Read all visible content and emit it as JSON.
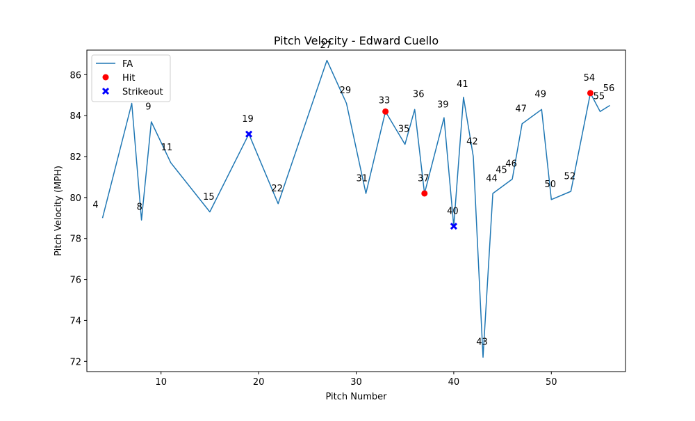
{
  "chart_data": {
    "type": "line",
    "title": "Pitch Velocity - Edward Cuello",
    "xlabel": "Pitch Number",
    "ylabel": "Pitch Velocity (MPH)",
    "xlim": [
      2.4,
      57.6
    ],
    "ylim": [
      71.5,
      87.2
    ],
    "xticks": [
      10,
      20,
      30,
      40,
      50
    ],
    "yticks": [
      72,
      74,
      76,
      78,
      80,
      82,
      84,
      86
    ],
    "grid": false,
    "legend_position": "top-left",
    "series": [
      {
        "name": "FA",
        "type": "line",
        "color": "#1f77b4",
        "x": [
          4,
          7,
          8,
          9,
          11,
          15,
          19,
          22,
          27,
          29,
          31,
          33,
          35,
          36,
          37,
          39,
          40,
          41,
          42,
          43,
          44,
          46,
          47,
          49,
          50,
          52,
          54,
          55,
          56
        ],
        "y": [
          79.0,
          84.6,
          78.9,
          83.7,
          81.7,
          79.3,
          83.1,
          79.7,
          86.7,
          84.6,
          80.2,
          84.2,
          82.6,
          84.3,
          80.2,
          83.9,
          78.6,
          84.9,
          82.0,
          72.2,
          80.2,
          80.9,
          83.6,
          84.3,
          79.9,
          80.3,
          85.1,
          84.2,
          84.5
        ]
      },
      {
        "name": "Hit",
        "type": "scatter",
        "marker": "circle",
        "color": "#ff0000",
        "x": [
          33,
          37,
          54
        ],
        "y": [
          84.2,
          80.2,
          85.1
        ]
      },
      {
        "name": "Strikeout",
        "type": "scatter",
        "marker": "x",
        "color": "#0000ff",
        "x": [
          19,
          40
        ],
        "y": [
          83.1,
          78.6
        ]
      }
    ],
    "annotations": [
      {
        "text": "4",
        "x": 3,
        "y": 79.5
      },
      {
        "text": "8",
        "x": 7.5,
        "y": 79.4
      },
      {
        "text": "9",
        "x": 8.4,
        "y": 84.3
      },
      {
        "text": "11",
        "x": 10,
        "y": 82.3
      },
      {
        "text": "15",
        "x": 14.3,
        "y": 79.9
      },
      {
        "text": "19",
        "x": 18.3,
        "y": 83.7
      },
      {
        "text": "22",
        "x": 21.3,
        "y": 80.3
      },
      {
        "text": "27",
        "x": 26.3,
        "y": 87.3
      },
      {
        "text": "29",
        "x": 28.3,
        "y": 85.1
      },
      {
        "text": "31",
        "x": 30,
        "y": 80.8
      },
      {
        "text": "33",
        "x": 32.3,
        "y": 84.6
      },
      {
        "text": "35",
        "x": 34.3,
        "y": 83.2
      },
      {
        "text": "36",
        "x": 35.8,
        "y": 84.9
      },
      {
        "text": "37",
        "x": 36.3,
        "y": 80.8
      },
      {
        "text": "39",
        "x": 38.3,
        "y": 84.4
      },
      {
        "text": "40",
        "x": 39.3,
        "y": 79.2
      },
      {
        "text": "41",
        "x": 40.3,
        "y": 85.4
      },
      {
        "text": "42",
        "x": 41.3,
        "y": 82.6
      },
      {
        "text": "43",
        "x": 42.3,
        "y": 72.8
      },
      {
        "text": "44",
        "x": 43.3,
        "y": 80.8
      },
      {
        "text": "45",
        "x": 44.3,
        "y": 81.2
      },
      {
        "text": "46",
        "x": 45.3,
        "y": 81.5
      },
      {
        "text": "47",
        "x": 46.3,
        "y": 84.2
      },
      {
        "text": "49",
        "x": 48.3,
        "y": 84.9
      },
      {
        "text": "50",
        "x": 49.3,
        "y": 80.5
      },
      {
        "text": "52",
        "x": 51.3,
        "y": 80.9
      },
      {
        "text": "54",
        "x": 53.3,
        "y": 85.7
      },
      {
        "text": "55",
        "x": 54.3,
        "y": 84.8
      },
      {
        "text": "56",
        "x": 55.3,
        "y": 85.2
      }
    ]
  }
}
